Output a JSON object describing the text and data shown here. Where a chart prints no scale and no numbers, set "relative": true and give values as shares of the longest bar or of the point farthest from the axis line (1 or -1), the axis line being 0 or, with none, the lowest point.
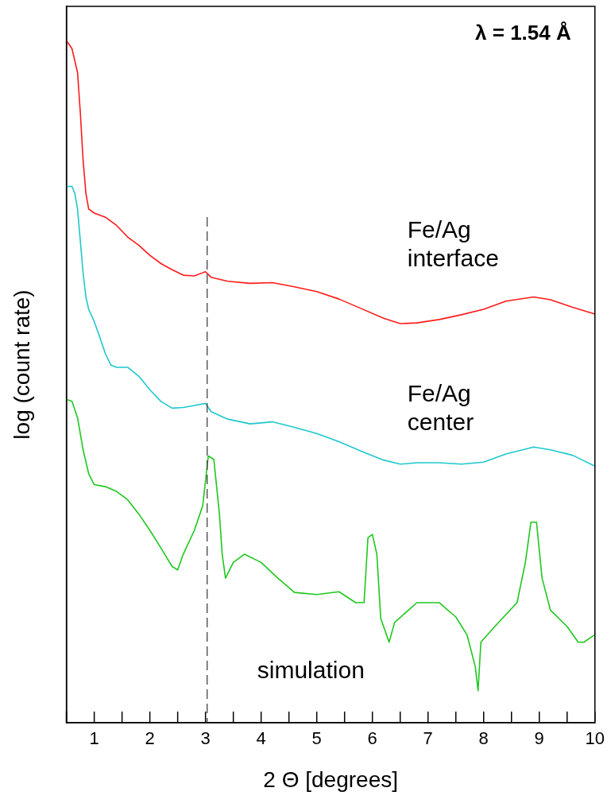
{
  "chart_data": {
    "type": "line",
    "relative": true,
    "xlabel": "2 Θ [degrees]",
    "ylabel": "log (count rate)",
    "xlim": [
      0.5,
      10
    ],
    "xticks": [
      {
        "value": 0.5,
        "label": null
      },
      1,
      {
        "value": 1.5,
        "label": null
      },
      2,
      {
        "value": 2.5,
        "label": null
      },
      3,
      {
        "value": 3.5,
        "label": null
      },
      4,
      {
        "value": 4.5,
        "label": null
      },
      5,
      {
        "value": 5.5,
        "label": null
      },
      6,
      {
        "value": 6.5,
        "label": null
      },
      7,
      {
        "value": 7.5,
        "label": null
      },
      8,
      {
        "value": 8.5,
        "label": null
      },
      9,
      {
        "value": 9.5,
        "label": null
      },
      10
    ],
    "grid": false,
    "legend": false,
    "line_style": "solid",
    "annotations": [
      "λ = 1.54 Å"
    ],
    "ref_lines": [
      {
        "axis": "x",
        "value": 3.03,
        "color": "#333333",
        "line_style": "dashed"
      }
    ],
    "series": [
      {
        "name": "Fe/Ag interface",
        "color": "#ff1a1a",
        "x": [
          0.5,
          0.6,
          0.7,
          0.75,
          0.8,
          0.85,
          0.9,
          1.0,
          1.2,
          1.4,
          1.6,
          1.8,
          2.0,
          2.2,
          2.4,
          2.6,
          2.8,
          3.0,
          3.1,
          3.4,
          3.8,
          4.2,
          4.6,
          5.0,
          5.4,
          5.8,
          6.2,
          6.5,
          6.8,
          7.2,
          7.6,
          8.0,
          8.4,
          8.9,
          9.2,
          9.6,
          10.0
        ],
        "values": [
          1,
          0.988,
          0.953,
          0.894,
          0.824,
          0.776,
          0.753,
          0.747,
          0.741,
          0.729,
          0.712,
          0.7,
          0.685,
          0.673,
          0.664,
          0.656,
          0.655,
          0.661,
          0.653,
          0.647,
          0.644,
          0.645,
          0.639,
          0.632,
          0.621,
          0.607,
          0.593,
          0.585,
          0.586,
          0.591,
          0.598,
          0.606,
          0.618,
          0.624,
          0.62,
          0.609,
          0.599
        ]
      },
      {
        "name": "Fe/Ag center",
        "color": "#1ec8cc",
        "x": [
          0.5,
          0.6,
          0.65,
          0.7,
          0.75,
          0.8,
          0.85,
          0.9,
          1.0,
          1.1,
          1.2,
          1.3,
          1.4,
          1.6,
          1.8,
          2.0,
          2.2,
          2.4,
          2.6,
          2.8,
          3.0,
          3.1,
          3.4,
          3.8,
          4.2,
          4.6,
          5.0,
          5.4,
          5.8,
          6.2,
          6.5,
          6.8,
          7.2,
          7.6,
          8.0,
          8.4,
          8.9,
          9.2,
          9.6,
          10.0
        ],
        "values": [
          0.786,
          0.786,
          0.776,
          0.753,
          0.706,
          0.659,
          0.624,
          0.606,
          0.588,
          0.565,
          0.541,
          0.524,
          0.521,
          0.521,
          0.508,
          0.488,
          0.471,
          0.461,
          0.462,
          0.465,
          0.468,
          0.456,
          0.445,
          0.438,
          0.441,
          0.433,
          0.424,
          0.412,
          0.398,
          0.385,
          0.379,
          0.381,
          0.381,
          0.379,
          0.382,
          0.394,
          0.404,
          0.4,
          0.392,
          0.376
        ]
      },
      {
        "name": "simulation",
        "color": "#1ec81e",
        "x": [
          0.5,
          0.6,
          0.7,
          0.8,
          0.9,
          1.0,
          1.2,
          1.4,
          1.6,
          1.8,
          2.0,
          2.2,
          2.4,
          2.5,
          2.6,
          2.8,
          2.95,
          3.05,
          3.15,
          3.25,
          3.3,
          3.36,
          3.5,
          3.7,
          4.0,
          4.3,
          4.6,
          5.0,
          5.4,
          5.7,
          5.85,
          5.92,
          6.0,
          6.08,
          6.15,
          6.3,
          6.4,
          6.8,
          7.2,
          7.5,
          7.7,
          7.85,
          7.9,
          7.95,
          8.2,
          8.6,
          8.75,
          8.85,
          8.95,
          9.05,
          9.2,
          9.5,
          9.7,
          9.8,
          10.0
        ],
        "values": [
          0.474,
          0.471,
          0.447,
          0.4,
          0.365,
          0.349,
          0.346,
          0.339,
          0.327,
          0.306,
          0.282,
          0.256,
          0.229,
          0.224,
          0.247,
          0.282,
          0.318,
          0.391,
          0.386,
          0.306,
          0.247,
          0.212,
          0.235,
          0.247,
          0.235,
          0.212,
          0.191,
          0.188,
          0.192,
          0.176,
          0.176,
          0.271,
          0.276,
          0.247,
          0.153,
          0.118,
          0.147,
          0.176,
          0.176,
          0.155,
          0.129,
          0.082,
          0.047,
          0.118,
          0.141,
          0.176,
          0.235,
          0.294,
          0.294,
          0.212,
          0.165,
          0.141,
          0.118,
          0.118,
          0.129
        ]
      }
    ]
  }
}
